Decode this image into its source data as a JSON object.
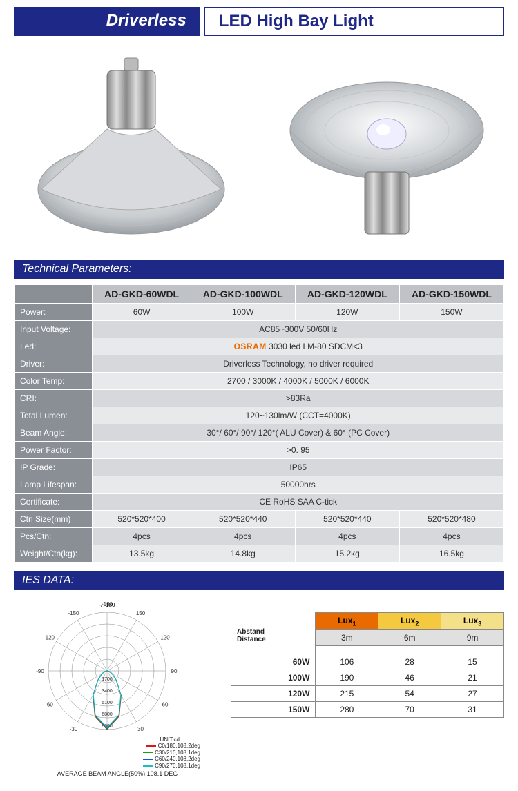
{
  "header": {
    "left": "Driverless",
    "right": "LED  High Bay Light"
  },
  "sections": {
    "tech": "Technical Parameters:",
    "ies": "IES DATA:"
  },
  "spec": {
    "columns": [
      "AD-GKD-60WDL",
      "AD-GKD-100WDL",
      "AD-GKD-120WDL",
      "AD-GKD-150WDL"
    ],
    "rows": [
      {
        "label": "Power:",
        "cells": [
          "60W",
          "100W",
          "120W",
          "150W"
        ]
      },
      {
        "label": "Input Voltage:",
        "cells": [
          "AC85~300V 50/60Hz"
        ]
      },
      {
        "label": "Led:",
        "cells_html": "<span class='osram'>OSRAM</span> 3030 led LM-80  SDCM<3"
      },
      {
        "label": "Driver:",
        "cells": [
          "Driverless Technology, no driver required"
        ]
      },
      {
        "label": "Color Temp:",
        "cells": [
          "2700 / 3000K / 4000K / 5000K / 6000K"
        ]
      },
      {
        "label": "CRI:",
        "cells": [
          ">83Ra"
        ]
      },
      {
        "label": "Total Lumen:",
        "cells": [
          "120~130lm/W  (CCT=4000K)"
        ]
      },
      {
        "label": "Beam Angle:",
        "cells": [
          "30°/  60°/ 90°/  120°( ALU Cover) & 60° (PC Cover)"
        ]
      },
      {
        "label": "Power Factor:",
        "cells": [
          ">0. 95"
        ]
      },
      {
        "label": "IP Grade:",
        "cells": [
          "IP65"
        ]
      },
      {
        "label": "Lamp Lifespan:",
        "cells": [
          "50000hrs"
        ]
      },
      {
        "label": "Certificate:",
        "cells": [
          "CE RoHS SAA C-tick"
        ]
      },
      {
        "label": "Ctn Size(mm)",
        "cells": [
          "520*520*400",
          "520*520*440",
          "520*520*440",
          "520*520*480"
        ]
      },
      {
        "label": "Pcs/Ctn:",
        "cells": [
          "4pcs",
          "4pcs",
          "4pcs",
          "4pcs"
        ]
      },
      {
        "label": "Weight/Ctn(kg):",
        "cells": [
          "13.5kg",
          "14.8kg",
          "15.2kg",
          "16.5kg"
        ]
      }
    ]
  },
  "polar": {
    "top_label": "-/+180",
    "angle_labels_deg": [
      -180,
      -150,
      -120,
      -90,
      -60,
      -30,
      0,
      30,
      60,
      90,
      120,
      150
    ],
    "radial_labels": [
      "1700",
      "3400",
      "5100",
      "6800",
      "8500"
    ],
    "unit": "UNIT:cd",
    "series": [
      {
        "name": "C0/180,108.2deg",
        "color": "#e01515"
      },
      {
        "name": "C30/210,108.1deg",
        "color": "#15a015"
      },
      {
        "name": "C60/240,108.2deg",
        "color": "#1550e0"
      },
      {
        "name": "C90/270,108.1deg",
        "color": "#15c0c0"
      }
    ],
    "rel_radii": [
      0.0,
      0.05,
      0.1,
      0.22,
      0.48,
      0.8,
      1.0,
      0.8,
      0.48,
      0.22,
      0.1,
      0.05,
      0.0
    ],
    "angles_for_curve": [
      -90,
      -75,
      -60,
      -45,
      -30,
      -15,
      0,
      15,
      30,
      45,
      60,
      75,
      90
    ],
    "footer": "AVERAGE BEAM ANGLE(50%):108.1 DEG"
  },
  "lux": {
    "corner_lines": [
      "Abstand",
      "Distance"
    ],
    "headers": [
      {
        "label": "Lux",
        "idx": "1",
        "dist": "3m",
        "cls": "lux1"
      },
      {
        "label": "Lux",
        "idx": "2",
        "dist": "6m",
        "cls": "lux2"
      },
      {
        "label": "Lux",
        "idx": "3",
        "dist": "9m",
        "cls": "lux3"
      }
    ],
    "rows": [
      {
        "w": "60W",
        "vals": [
          "106",
          "28",
          "15"
        ]
      },
      {
        "w": "100W",
        "vals": [
          "190",
          "46",
          "21"
        ]
      },
      {
        "w": "120W",
        "vals": [
          "215",
          "54",
          "27"
        ]
      },
      {
        "w": "150W",
        "vals": [
          "280",
          "70",
          "31"
        ]
      }
    ]
  },
  "colors": {
    "brand": "#1e2987",
    "label_bg": "#8a8f96",
    "row_alt0": "#e8e9eb",
    "row_alt1": "#d6d8db"
  }
}
